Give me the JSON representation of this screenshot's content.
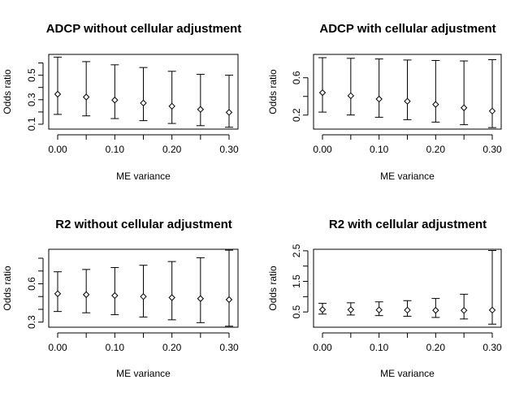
{
  "chart_data": [
    {
      "type": "scatter",
      "title": "ADCP without cellular adjustment",
      "xlabel": "ME variance",
      "ylabel": "Odds ratio",
      "xlim": [
        0.0,
        0.3
      ],
      "ylim": [
        0.06,
        0.67
      ],
      "xticks": [
        "0.00",
        "0.10",
        "0.20",
        "0.30"
      ],
      "yticks": [
        "0.1",
        "0.3",
        "0.5"
      ],
      "ytick_values": [
        0.1,
        0.3,
        0.5
      ],
      "minor_yticks": [
        0.2,
        0.4,
        0.6
      ],
      "x": [
        0.0,
        0.05,
        0.1,
        0.15,
        0.2,
        0.25,
        0.3
      ],
      "point": [
        0.345,
        0.322,
        0.297,
        0.273,
        0.247,
        0.221,
        0.197
      ],
      "lower": [
        0.18,
        0.168,
        0.146,
        0.129,
        0.106,
        0.088,
        0.075
      ],
      "upper": [
        0.648,
        0.611,
        0.585,
        0.563,
        0.532,
        0.507,
        0.5
      ]
    },
    {
      "type": "scatter",
      "title": "ADCP with cellular adjustment",
      "xlabel": "ME variance",
      "ylabel": "Odds ratio",
      "xlim": [
        0.0,
        0.3
      ],
      "ylim": [
        0.05,
        0.85
      ],
      "xticks": [
        "0.00",
        "0.10",
        "0.20",
        "0.30"
      ],
      "yticks": [
        "0.2",
        "0.6"
      ],
      "ytick_values": [
        0.2,
        0.6
      ],
      "minor_yticks": [
        0.4
      ],
      "x": [
        0.0,
        0.05,
        0.1,
        0.15,
        0.2,
        0.25,
        0.3
      ],
      "point": [
        0.44,
        0.407,
        0.372,
        0.348,
        0.314,
        0.278,
        0.243
      ],
      "lower": [
        0.232,
        0.201,
        0.177,
        0.151,
        0.125,
        0.097,
        0.066
      ],
      "upper": [
        0.815,
        0.808,
        0.801,
        0.79,
        0.785,
        0.78,
        0.794
      ]
    },
    {
      "type": "scatter",
      "title": "R2 without cellular adjustment",
      "xlabel": "ME variance",
      "ylabel": "Odds ratio",
      "xlim": [
        0.0,
        0.3
      ],
      "ylim": [
        0.26,
        0.87
      ],
      "xticks": [
        "0.00",
        "0.10",
        "0.20",
        "0.30"
      ],
      "yticks": [
        "0.3",
        "0.6"
      ],
      "ytick_values": [
        0.3,
        0.6
      ],
      "minor_yticks": [
        0.4,
        0.5,
        0.7,
        0.8
      ],
      "x": [
        0.0,
        0.05,
        0.1,
        0.15,
        0.2,
        0.25,
        0.3
      ],
      "point": [
        0.522,
        0.515,
        0.508,
        0.5,
        0.492,
        0.484,
        0.476
      ],
      "lower": [
        0.383,
        0.373,
        0.358,
        0.34,
        0.318,
        0.296,
        0.268
      ],
      "upper": [
        0.694,
        0.712,
        0.727,
        0.745,
        0.774,
        0.804,
        0.863
      ]
    },
    {
      "type": "scatter",
      "title": "R2 with cellular adjustment",
      "xlabel": "ME variance",
      "ylabel": "Odds ratio",
      "xlim": [
        0.0,
        0.3
      ],
      "ylim": [
        0.0,
        2.55
      ],
      "xticks": [
        "0.00",
        "0.10",
        "0.20",
        "0.30"
      ],
      "yticks": [
        "0.5",
        "1.5",
        "2.5"
      ],
      "ytick_values": [
        0.5,
        1.5,
        2.5
      ],
      "minor_yticks": [
        1.0,
        2.0
      ],
      "x": [
        0.0,
        0.05,
        0.1,
        0.15,
        0.2,
        0.25,
        0.3
      ],
      "point": [
        0.578,
        0.573,
        0.566,
        0.56,
        0.554,
        0.55,
        0.56
      ],
      "lower": [
        0.43,
        0.4,
        0.38,
        0.36,
        0.32,
        0.27,
        0.1
      ],
      "upper": [
        0.78,
        0.8,
        0.83,
        0.87,
        0.94,
        1.08,
        2.51
      ]
    }
  ]
}
